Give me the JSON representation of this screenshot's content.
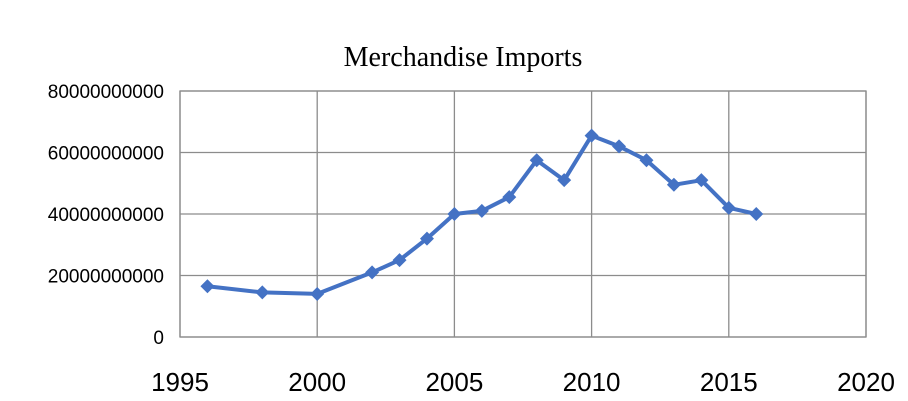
{
  "chart_data": {
    "type": "line",
    "title": "Merchandise Imports",
    "xlabel": "",
    "ylabel": "",
    "xlim": [
      1995,
      2020
    ],
    "ylim": [
      0,
      80000000000
    ],
    "x_ticks": [
      "1995",
      "2000",
      "2005",
      "2010",
      "2015",
      "2020"
    ],
    "y_ticks": [
      "0",
      "20000000000",
      "40000000000",
      "60000000000",
      "80000000000"
    ],
    "grid": true,
    "legend": "none",
    "series": [
      {
        "color": "#4472C4",
        "marker": "diamond",
        "x": [
          1996,
          1998,
          2000,
          2002,
          2003,
          2004,
          2005,
          2006,
          2007,
          2008,
          2009,
          2010,
          2011,
          2012,
          2013,
          2014,
          2015,
          2016
        ],
        "y": [
          16500000000,
          14500000000,
          14000000000,
          21000000000,
          25000000000,
          32000000000,
          40000000000,
          41000000000,
          45500000000,
          57500000000,
          51000000000,
          65500000000,
          62000000000,
          57500000000,
          49500000000,
          51000000000,
          42000000000,
          40000000000
        ]
      }
    ]
  }
}
